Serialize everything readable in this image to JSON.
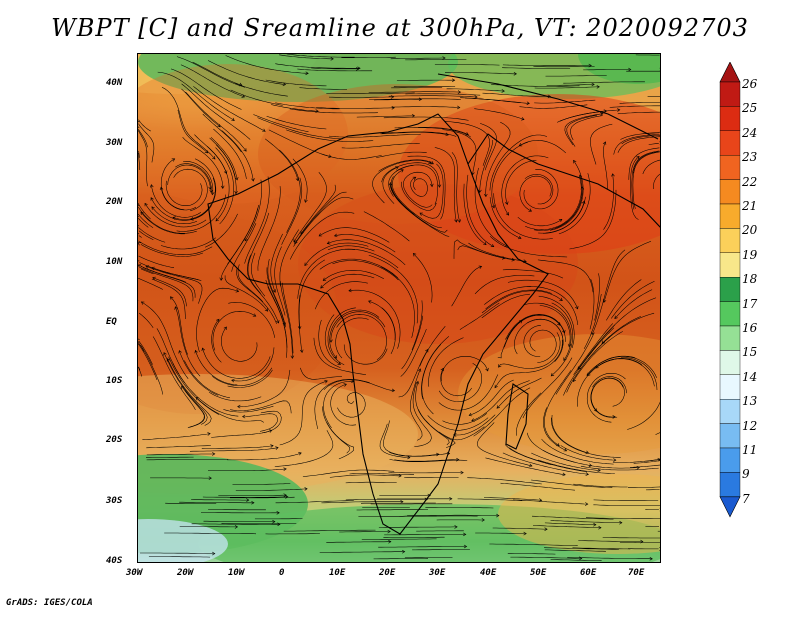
{
  "title": "WBPT [C] and Sreamline at 300hPa, VT: 2020092703",
  "footer": "GrADS: IGES/COLA",
  "map": {
    "lon_labels": [
      "30W",
      "20W",
      "10W",
      "0",
      "10E",
      "20E",
      "30E",
      "40E",
      "50E",
      "60E",
      "70E"
    ],
    "lat_labels": [
      "40N",
      "30N",
      "20N",
      "10N",
      "EQ",
      "10S",
      "20S",
      "30S",
      "40S"
    ]
  },
  "colorbar": {
    "labels": [
      "26",
      "25",
      "24",
      "23",
      "22",
      "21",
      "20",
      "19",
      "18",
      "17",
      "16",
      "15",
      "14",
      "13",
      "12",
      "11",
      "9",
      "7"
    ],
    "colors": [
      "#a51414",
      "#c01a14",
      "#dc2c12",
      "#e8451a",
      "#f06420",
      "#f58a20",
      "#f8ab2c",
      "#fbd05a",
      "#f8e78a",
      "#2ba04a",
      "#55c85e",
      "#95e095",
      "#dff8e8",
      "#e8f8ff",
      "#a8d8f8",
      "#78bcf2",
      "#4a9cec",
      "#2a7ae0",
      "#1a5ad0"
    ]
  }
}
